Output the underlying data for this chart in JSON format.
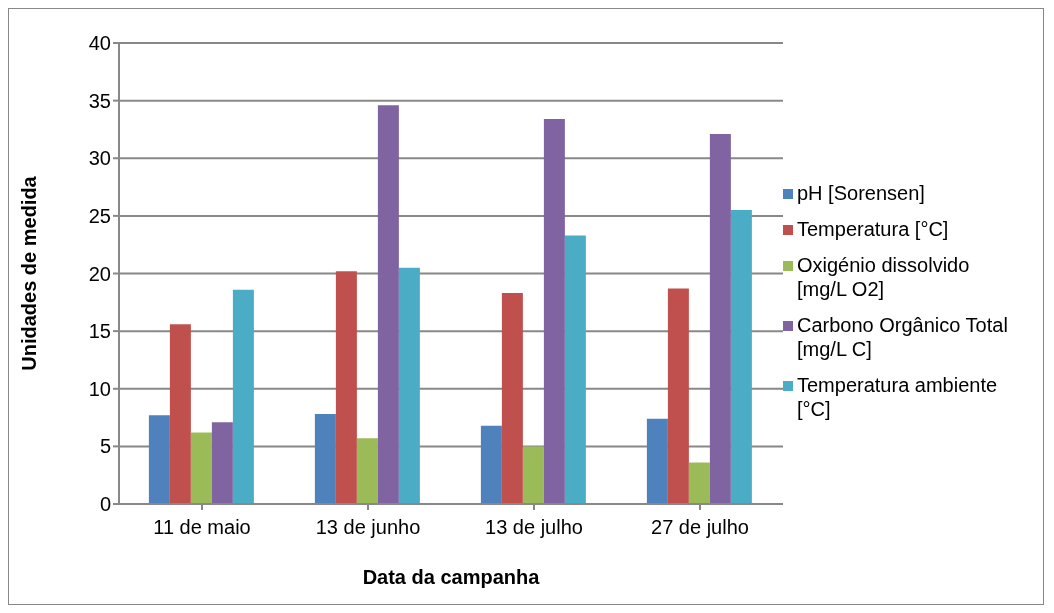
{
  "chart_data": {
    "type": "bar",
    "xlabel": "Data da campanha",
    "ylabel": "Unidades de medida",
    "categories": [
      "11 de maio",
      "13 de junho",
      "13 de julho",
      "27 de julho"
    ],
    "series": [
      {
        "name": "pH [Sorensen]",
        "color": "#4f81bd",
        "values": [
          7.7,
          7.8,
          6.8,
          7.4
        ]
      },
      {
        "name": "Temperatura [°C]",
        "color": "#c0504d",
        "values": [
          15.6,
          20.2,
          18.3,
          18.7
        ]
      },
      {
        "name": "Oxigénio dissolvido [mg/L O2]",
        "color": "#9bbb59",
        "values": [
          6.2,
          5.7,
          5.0,
          3.6
        ]
      },
      {
        "name": "Carbono Orgânico Total [mg/L C]",
        "color": "#8064a2",
        "values": [
          7.1,
          34.6,
          33.4,
          32.1
        ]
      },
      {
        "name": "Temperatura ambiente [°C]",
        "color": "#4bacc6",
        "values": [
          18.6,
          20.5,
          23.3,
          25.5
        ]
      }
    ],
    "ylim": [
      0,
      40
    ],
    "yticks": [
      0,
      5,
      10,
      15,
      20,
      25,
      30,
      35,
      40
    ],
    "grid": "y",
    "legend": "right"
  }
}
